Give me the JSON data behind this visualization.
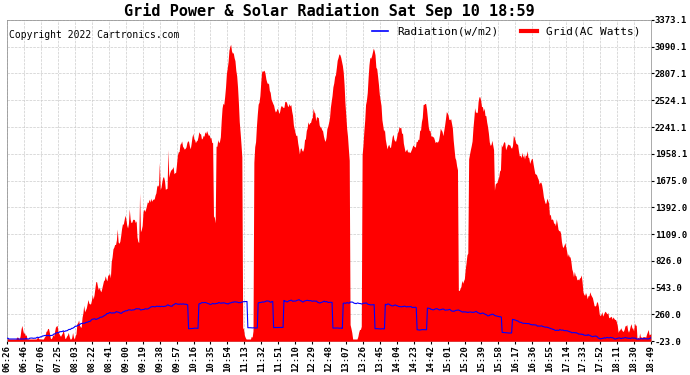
{
  "title": "Grid Power & Solar Radiation Sat Sep 10 18:59",
  "copyright": "Copyright 2022 Cartronics.com",
  "legend_radiation": "Radiation(w/m2)",
  "legend_grid": "Grid(AC Watts)",
  "yticks": [
    -23.0,
    260.0,
    543.0,
    826.0,
    1109.0,
    1392.0,
    1675.0,
    1958.1,
    2241.1,
    2524.1,
    2807.1,
    3090.1,
    3373.1
  ],
  "ymin": -23.0,
  "ymax": 3373.1,
  "background_color": "#ffffff",
  "plot_bg_color": "#ffffff",
  "grid_color": "#cccccc",
  "radiation_color": "#0000ff",
  "grid_power_color": "#ff0000",
  "xtick_labels": [
    "06:26",
    "06:46",
    "07:06",
    "07:25",
    "08:03",
    "08:22",
    "08:41",
    "09:00",
    "09:19",
    "09:38",
    "09:57",
    "10:16",
    "10:35",
    "10:54",
    "11:13",
    "11:32",
    "11:51",
    "12:10",
    "12:29",
    "12:48",
    "13:07",
    "13:26",
    "13:45",
    "14:04",
    "14:23",
    "14:42",
    "15:01",
    "15:20",
    "15:39",
    "15:58",
    "16:17",
    "16:36",
    "16:55",
    "17:14",
    "17:33",
    "17:52",
    "18:11",
    "18:30",
    "18:49"
  ],
  "title_fontsize": 11,
  "tick_fontsize": 6.5,
  "legend_fontsize": 8,
  "copyright_fontsize": 7
}
